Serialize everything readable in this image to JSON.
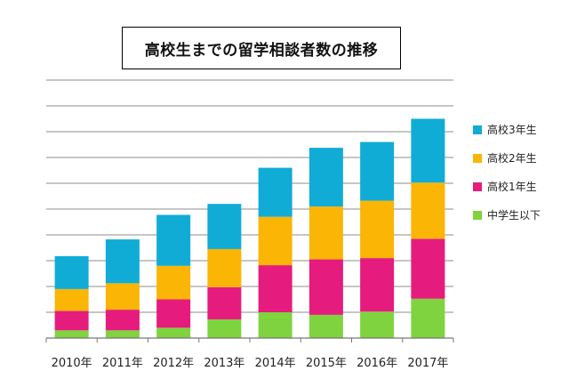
{
  "chart_data": {
    "type": "bar",
    "stacked": true,
    "title": "高校生までの留学相談者数の推移",
    "xlabel": "",
    "ylabel": "",
    "categories": [
      "2010年",
      "2011年",
      "2012年",
      "2013年",
      "2014年",
      "2015年",
      "2016年",
      "2017年"
    ],
    "series": [
      {
        "name": "中学生以下",
        "color": "#7fd33f",
        "values": [
          1.2,
          1.2,
          1.6,
          2.9,
          4.0,
          3.6,
          4.1,
          6.1
        ]
      },
      {
        "name": "高校1年生",
        "color": "#e51c7d",
        "values": [
          3.0,
          3.2,
          4.4,
          5.0,
          7.3,
          8.6,
          8.3,
          9.3
        ]
      },
      {
        "name": "高校2年生",
        "color": "#fab505",
        "values": [
          3.4,
          4.1,
          5.2,
          5.9,
          7.5,
          8.2,
          8.9,
          8.7
        ]
      },
      {
        "name": "高校3年生",
        "color": "#10acd6",
        "values": [
          5.1,
          6.8,
          7.9,
          7.0,
          7.6,
          9.1,
          9.1,
          9.9
        ]
      }
    ],
    "ylim": [
      0,
      40
    ],
    "grid": true,
    "legend_position": "right"
  }
}
